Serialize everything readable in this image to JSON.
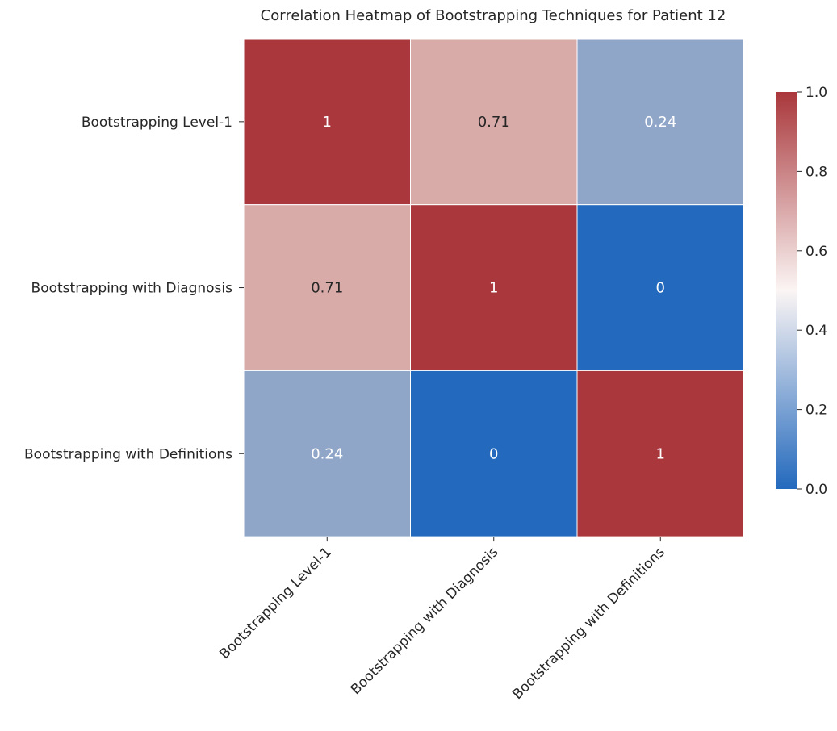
{
  "chart_data": {
    "type": "heatmap",
    "title": "Correlation Heatmap of Bootstrapping Techniques for Patient 12",
    "xlabel": "",
    "ylabel": "",
    "rows": [
      "Bootstrapping Level-1",
      "Bootstrapping with Diagnosis",
      "Bootstrapping with Definitions"
    ],
    "columns": [
      "Bootstrapping Level-1",
      "Bootstrapping with Diagnosis",
      "Bootstrapping with Definitions"
    ],
    "values": [
      [
        1,
        0.71,
        0.24
      ],
      [
        0.71,
        1,
        0
      ],
      [
        0.24,
        0,
        1
      ]
    ],
    "annotations": [
      [
        "1",
        "0.71",
        "0.24"
      ],
      [
        "0.71",
        "1",
        "0"
      ],
      [
        "0.24",
        "0",
        "1"
      ]
    ],
    "colorbar": {
      "range": [
        0,
        1
      ],
      "ticks": [
        "0.0",
        "0.2",
        "0.4",
        "0.6",
        "0.8",
        "1.0"
      ],
      "colormap": "vlag",
      "low_color": "#2369bd",
      "mid_color": "#ffffff",
      "high_color": "#a9373b"
    }
  }
}
